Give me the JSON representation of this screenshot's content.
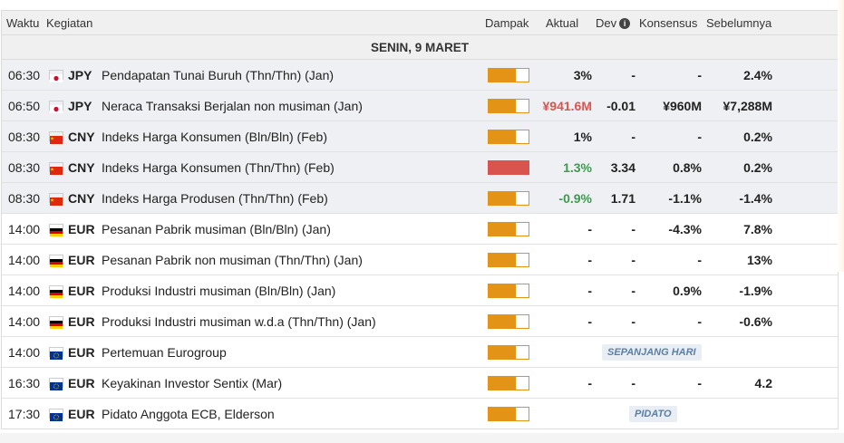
{
  "header": {
    "time": "Waktu",
    "event": "Kegiatan",
    "impact": "Dampak",
    "actual": "Aktual",
    "dev": "Dev",
    "consensus": "Konsensus",
    "previous": "Sebelumnya"
  },
  "date_label": "SENIN, 9 MARET",
  "colors": {
    "impact_orange": "#e39315",
    "impact_red": "#d9534f",
    "positive": "#3c9a4f",
    "negative_red": "#d9534f"
  },
  "rows": [
    {
      "time": "06:30",
      "flag": "jp-flag-icon",
      "ccy": "JPY",
      "event": "Pendapatan Tunai Buruh (Thn/Thn) (Jan)",
      "impact": "medium",
      "actual": "3%",
      "dev": "-",
      "consensus": "-",
      "previous": "2.4%"
    },
    {
      "time": "06:50",
      "flag": "jp-flag-icon",
      "ccy": "JPY",
      "event": "Neraca Transaksi Berjalan non musiman (Jan)",
      "impact": "medium",
      "actual": "¥941.6M",
      "dev": "-0.01",
      "consensus": "¥960M",
      "previous": "¥7,288M"
    },
    {
      "time": "08:30",
      "flag": "cn-flag-icon",
      "ccy": "CNY",
      "event": "Indeks Harga Konsumen (Bln/Bln) (Feb)",
      "impact": "medium",
      "actual": "1%",
      "dev": "-",
      "consensus": "-",
      "previous": "0.2%"
    },
    {
      "time": "08:30",
      "flag": "cn-flag-icon",
      "ccy": "CNY",
      "event": "Indeks Harga Konsumen (Thn/Thn) (Feb)",
      "impact": "high",
      "actual": "1.3%",
      "dev": "3.34",
      "consensus": "0.8%",
      "previous": "0.2%"
    },
    {
      "time": "08:30",
      "flag": "cn-flag-icon",
      "ccy": "CNY",
      "event": "Indeks Harga Produsen (Thn/Thn) (Feb)",
      "impact": "medium",
      "actual": "-0.9%",
      "dev": "1.71",
      "consensus": "-1.1%",
      "previous": "-1.4%"
    },
    {
      "time": "14:00",
      "flag": "de-flag-icon",
      "ccy": "EUR",
      "event": "Pesanan Pabrik musiman (Bln/Bln) (Jan)",
      "impact": "medium",
      "actual": "-",
      "dev": "-",
      "consensus": "-4.3%",
      "previous": "7.8%"
    },
    {
      "time": "14:00",
      "flag": "de-flag-icon",
      "ccy": "EUR",
      "event": "Pesanan Pabrik non musiman (Thn/Thn) (Jan)",
      "impact": "medium",
      "actual": "-",
      "dev": "-",
      "consensus": "-",
      "previous": "13%"
    },
    {
      "time": "14:00",
      "flag": "de-flag-icon",
      "ccy": "EUR",
      "event": "Produksi Industri musiman (Bln/Bln) (Jan)",
      "impact": "medium",
      "actual": "-",
      "dev": "-",
      "consensus": "0.9%",
      "previous": "-1.9%"
    },
    {
      "time": "14:00",
      "flag": "de-flag-icon",
      "ccy": "EUR",
      "event": "Produksi Industri musiman w.d.a (Thn/Thn) (Jan)",
      "impact": "medium",
      "actual": "-",
      "dev": "-",
      "consensus": "-",
      "previous": "-0.6%"
    },
    {
      "time": "14:00",
      "flag": "eu-flag-icon",
      "ccy": "EUR",
      "event": "Pertemuan Eurogroup",
      "impact": "medium",
      "tag": "SEPANJANG HARI"
    },
    {
      "time": "16:30",
      "flag": "eu-flag-icon",
      "ccy": "EUR",
      "event": "Keyakinan Investor Sentix (Mar)",
      "impact": "medium",
      "actual": "-",
      "dev": "-",
      "consensus": "-",
      "previous": "4.2"
    },
    {
      "time": "17:30",
      "flag": "eu-flag-icon",
      "ccy": "EUR",
      "event": "Pidato Anggota ECB, Elderson",
      "impact": "medium",
      "tag": "PIDATO"
    }
  ]
}
